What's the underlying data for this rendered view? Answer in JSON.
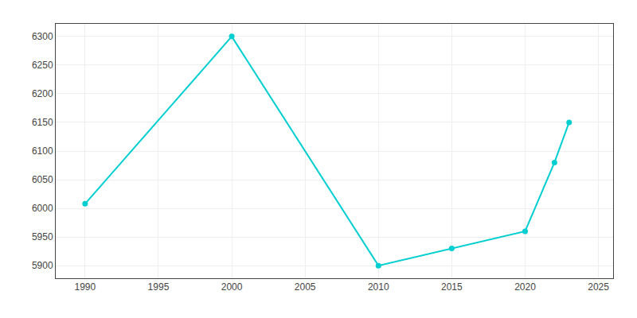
{
  "chart_data": {
    "type": "line",
    "x": [
      1990,
      2000,
      2010,
      2015,
      2020,
      2022,
      2023
    ],
    "values": [
      6008,
      6300,
      5900,
      5930,
      5960,
      6080,
      6150
    ],
    "color": "#00CED1",
    "marker": "circle",
    "xlim": [
      1988,
      2026
    ],
    "ylim": [
      5878,
      6322
    ],
    "xticks": [
      1990,
      1995,
      2000,
      2005,
      2010,
      2015,
      2020,
      2025
    ],
    "yticks": [
      5900,
      5950,
      6000,
      6050,
      6100,
      6150,
      6200,
      6250,
      6300
    ],
    "grid": true
  }
}
